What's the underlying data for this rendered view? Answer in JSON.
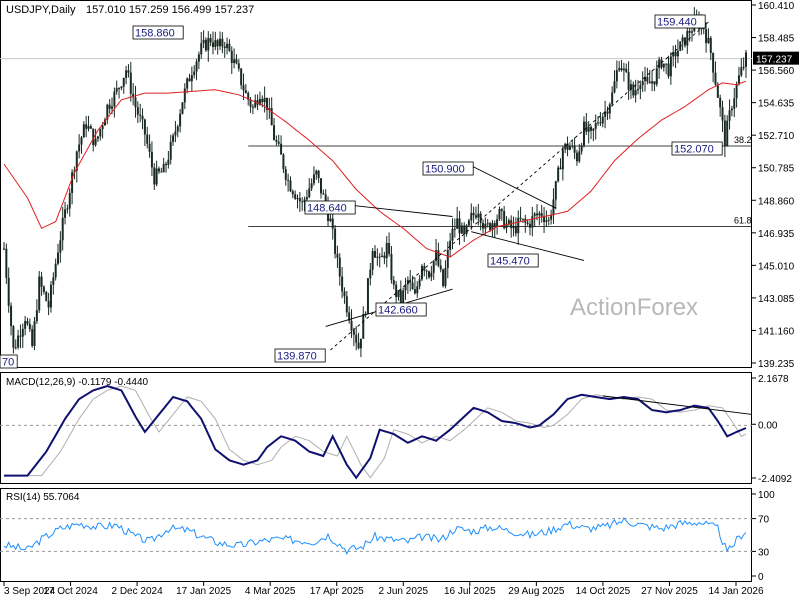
{
  "header": {
    "symbol": "USDJPY,Daily",
    "ohlc": "157.010 157.259 156.499 157.237"
  },
  "watermark": "ActionForex",
  "chart_data": [
    {
      "type": "candlestick",
      "title": "USDJPY,Daily",
      "y_ticks": [
        "160.410",
        "158.485",
        "156.560",
        "154.635",
        "152.710",
        "150.785",
        "148.860",
        "146.935",
        "145.010",
        "143.085",
        "141.160",
        "139.235"
      ],
      "ylim": [
        139.235,
        160.41
      ],
      "last_price": "157.237",
      "x_ticks": [
        "3 Sep 2024",
        "17 Oct 2024",
        "2 Dec 2024",
        "17 Jan 2025",
        "4 Mar 2025",
        "17 Apr 2025",
        "2 Jun 2025",
        "16 Jul 2025",
        "29 Aug 2025",
        "14 Oct 2025",
        "27 Nov 2025",
        "14 Jan 2026"
      ],
      "price_labels": [
        "158.860",
        "159.440",
        "148.640",
        "150.900",
        "145.470",
        "142.660",
        "139.870",
        "152.070",
        "70"
      ],
      "fib_labels": [
        "38.2",
        "61.8"
      ],
      "fib_levels": [
        152.07,
        147.3
      ],
      "close_path": [
        [
          0,
          146
        ],
        [
          4,
          140
        ],
        [
          9,
          142
        ],
        [
          12,
          140.2
        ],
        [
          15,
          144
        ],
        [
          19,
          142.6
        ],
        [
          23,
          146
        ],
        [
          27,
          148.8
        ],
        [
          31,
          151.8
        ],
        [
          35,
          153.4
        ],
        [
          39,
          152.2
        ],
        [
          44,
          154.4
        ],
        [
          48,
          155.3
        ],
        [
          52,
          156.6
        ],
        [
          56,
          154.4
        ],
        [
          60,
          152.8
        ],
        [
          64,
          150.2
        ],
        [
          68,
          150.6
        ],
        [
          72,
          152.4
        ],
        [
          76,
          154.8
        ],
        [
          80,
          156.6
        ],
        [
          84,
          157.8
        ],
        [
          88,
          158.4
        ],
        [
          91,
          157.9
        ],
        [
          94,
          158.2
        ],
        [
          97,
          157.3
        ],
        [
          100,
          156.3
        ],
        [
          103,
          155.1
        ],
        [
          106,
          154.3
        ],
        [
          109,
          155.3
        ],
        [
          112,
          154.5
        ],
        [
          115,
          152.6
        ],
        [
          118,
          151.4
        ],
        [
          121,
          150.0
        ],
        [
          124,
          149.3
        ],
        [
          127,
          148.6
        ],
        [
          130,
          149.6
        ],
        [
          133,
          150.4
        ],
        [
          136,
          149.0
        ],
        [
          139,
          147.6
        ],
        [
          142,
          145.1
        ],
        [
          145,
          143.1
        ],
        [
          148,
          141.6
        ],
        [
          151,
          140.2
        ],
        [
          154,
          142.6
        ],
        [
          157,
          146.2
        ],
        [
          160,
          145.1
        ],
        [
          163,
          146.1
        ],
        [
          166,
          143.6
        ],
        [
          169,
          142.9
        ],
        [
          172,
          144.1
        ],
        [
          175,
          143.1
        ],
        [
          178,
          145.2
        ],
        [
          181,
          144.6
        ],
        [
          184,
          145.6
        ],
        [
          187,
          143.8
        ],
        [
          190,
          146.6
        ],
        [
          193,
          147.6
        ],
        [
          196,
          146.6
        ],
        [
          199,
          147.8
        ],
        [
          202,
          148.4
        ],
        [
          205,
          147.1
        ],
        [
          208,
          147.6
        ],
        [
          211,
          148.0
        ],
        [
          214,
          147.4
        ],
        [
          217,
          147.1
        ],
        [
          220,
          147.6
        ],
        [
          223,
          147.4
        ],
        [
          226,
          147.9
        ],
        [
          229,
          148.1
        ],
        [
          232,
          147.6
        ],
        [
          235,
          149.6
        ],
        [
          238,
          151.9
        ],
        [
          241,
          152.1
        ],
        [
          244,
          151.4
        ],
        [
          247,
          153.1
        ],
        [
          250,
          152.6
        ],
        [
          253,
          153.6
        ],
        [
          256,
          154.1
        ],
        [
          259,
          155.1
        ],
        [
          262,
          157.1
        ],
        [
          265,
          156.1
        ],
        [
          268,
          155.1
        ],
        [
          271,
          156.1
        ],
        [
          274,
          155.6
        ],
        [
          277,
          156.1
        ],
        [
          280,
          157.1
        ],
        [
          283,
          156.6
        ],
        [
          286,
          157.6
        ],
        [
          289,
          158.1
        ],
        [
          292,
          158.9
        ],
        [
          295,
          159.4
        ],
        [
          298,
          159.1
        ],
        [
          301,
          157.6
        ],
        [
          304,
          155.1
        ],
        [
          307,
          152.4
        ],
        [
          310,
          154.6
        ],
        [
          313,
          156.1
        ],
        [
          316,
          157.24
        ]
      ],
      "ma_path": [
        [
          0,
          151
        ],
        [
          10,
          149
        ],
        [
          16,
          147.2
        ],
        [
          22,
          147.6
        ],
        [
          30,
          150.5
        ],
        [
          40,
          153.0
        ],
        [
          50,
          154.8
        ],
        [
          60,
          155.2
        ],
        [
          70,
          155.2
        ],
        [
          80,
          155.3
        ],
        [
          90,
          155.4
        ],
        [
          100,
          155.1
        ],
        [
          110,
          154.5
        ],
        [
          120,
          153.5
        ],
        [
          130,
          152.4
        ],
        [
          140,
          151.2
        ],
        [
          150,
          149.5
        ],
        [
          160,
          148.2
        ],
        [
          170,
          147.2
        ],
        [
          180,
          146.0
        ],
        [
          190,
          145.5
        ],
        [
          200,
          146.5
        ],
        [
          210,
          147.3
        ],
        [
          220,
          147.6
        ],
        [
          230,
          147.9
        ],
        [
          240,
          148.2
        ],
        [
          250,
          149.4
        ],
        [
          260,
          151.2
        ],
        [
          270,
          152.5
        ],
        [
          280,
          153.6
        ],
        [
          290,
          154.4
        ],
        [
          300,
          155.4
        ],
        [
          306,
          155.8
        ],
        [
          312,
          155.7
        ],
        [
          316,
          155.9
        ]
      ],
      "trendlines": [
        {
          "from": [
            137,
            141.4
          ],
          "to": [
            191,
            143.6
          ],
          "dash": false
        },
        {
          "from": [
            139,
            148.7
          ],
          "to": [
            191,
            147.9
          ],
          "dash": false
        },
        {
          "from": [
            199,
            150.9
          ],
          "to": [
            235,
            148.4
          ],
          "dash": false
        },
        {
          "from": [
            199,
            147.0
          ],
          "to": [
            247,
            145.3
          ],
          "dash": false
        },
        {
          "from": [
            139,
            140.0
          ],
          "to": [
            300,
            159.4
          ],
          "dash": true
        }
      ]
    },
    {
      "type": "line",
      "title": "MACD(12,26,9) -0.1179 -0.4440",
      "y_ticks": [
        "2.1678",
        "0.00",
        "0.00",
        "-2.4092"
      ],
      "ylim": [
        -2.4092,
        2.1678
      ],
      "series": [
        {
          "values": [
            [
              0,
              -2.3
            ],
            [
              10,
              -2.3
            ],
            [
              18,
              -1.2
            ],
            [
              26,
              0.3
            ],
            [
              32,
              1.2
            ],
            [
              38,
              1.6
            ],
            [
              44,
              1.8
            ],
            [
              50,
              1.6
            ],
            [
              56,
              0.4
            ],
            [
              60,
              -0.3
            ],
            [
              66,
              0.5
            ],
            [
              72,
              1.3
            ],
            [
              78,
              1.1
            ],
            [
              84,
              0.3
            ],
            [
              90,
              -1.1
            ],
            [
              96,
              -1.6
            ],
            [
              102,
              -1.8
            ],
            [
              108,
              -1.6
            ],
            [
              112,
              -1.0
            ],
            [
              118,
              -0.5
            ],
            [
              124,
              -0.7
            ],
            [
              130,
              -1.2
            ],
            [
              136,
              -1.4
            ],
            [
              140,
              -0.5
            ],
            [
              146,
              -1.8
            ],
            [
              150,
              -2.4
            ],
            [
              156,
              -1.5
            ],
            [
              160,
              -0.2
            ],
            [
              166,
              -0.4
            ],
            [
              172,
              -0.8
            ],
            [
              178,
              -0.5
            ],
            [
              184,
              -0.7
            ],
            [
              190,
              -0.2
            ],
            [
              196,
              0.4
            ],
            [
              200,
              0.8
            ],
            [
              206,
              0.6
            ],
            [
              212,
              0.2
            ],
            [
              218,
              0.1
            ],
            [
              224,
              -0.1
            ],
            [
              228,
              0.0
            ],
            [
              234,
              0.5
            ],
            [
              240,
              1.2
            ],
            [
              246,
              1.4
            ],
            [
              252,
              1.3
            ],
            [
              258,
              1.2
            ],
            [
              264,
              1.3
            ],
            [
              270,
              1.2
            ],
            [
              276,
              0.7
            ],
            [
              282,
              0.6
            ],
            [
              288,
              0.7
            ],
            [
              294,
              0.9
            ],
            [
              300,
              0.8
            ],
            [
              304,
              0.2
            ],
            [
              308,
              -0.5
            ],
            [
              312,
              -0.3
            ],
            [
              316,
              -0.12
            ]
          ]
        }
      ]
    },
    {
      "type": "line",
      "title": "RSI(14) 55.7064",
      "y_ticks": [
        "100",
        "70",
        "30",
        "0"
      ],
      "ylim": [
        0,
        100
      ],
      "series": [
        {
          "values": [
            [
              0,
              38
            ],
            [
              10,
              32
            ],
            [
              16,
              45
            ],
            [
              24,
              58
            ],
            [
              32,
              64
            ],
            [
              40,
              60
            ],
            [
              48,
              62
            ],
            [
              56,
              48
            ],
            [
              62,
              42
            ],
            [
              70,
              58
            ],
            [
              78,
              56
            ],
            [
              86,
              46
            ],
            [
              92,
              40
            ],
            [
              100,
              37
            ],
            [
              108,
              42
            ],
            [
              116,
              45
            ],
            [
              124,
              44
            ],
            [
              132,
              42
            ],
            [
              138,
              50
            ],
            [
              146,
              32
            ],
            [
              152,
              35
            ],
            [
              158,
              48
            ],
            [
              164,
              45
            ],
            [
              172,
              42
            ],
            [
              178,
              48
            ],
            [
              186,
              44
            ],
            [
              192,
              58
            ],
            [
              200,
              55
            ],
            [
              208,
              60
            ],
            [
              216,
              55
            ],
            [
              224,
              50
            ],
            [
              232,
              55
            ],
            [
              240,
              64
            ],
            [
              248,
              58
            ],
            [
              256,
              60
            ],
            [
              264,
              68
            ],
            [
              272,
              62
            ],
            [
              280,
              58
            ],
            [
              288,
              64
            ],
            [
              296,
              66
            ],
            [
              304,
              58
            ],
            [
              308,
              28
            ],
            [
              312,
              44
            ],
            [
              316,
              55.7
            ]
          ]
        }
      ]
    }
  ]
}
